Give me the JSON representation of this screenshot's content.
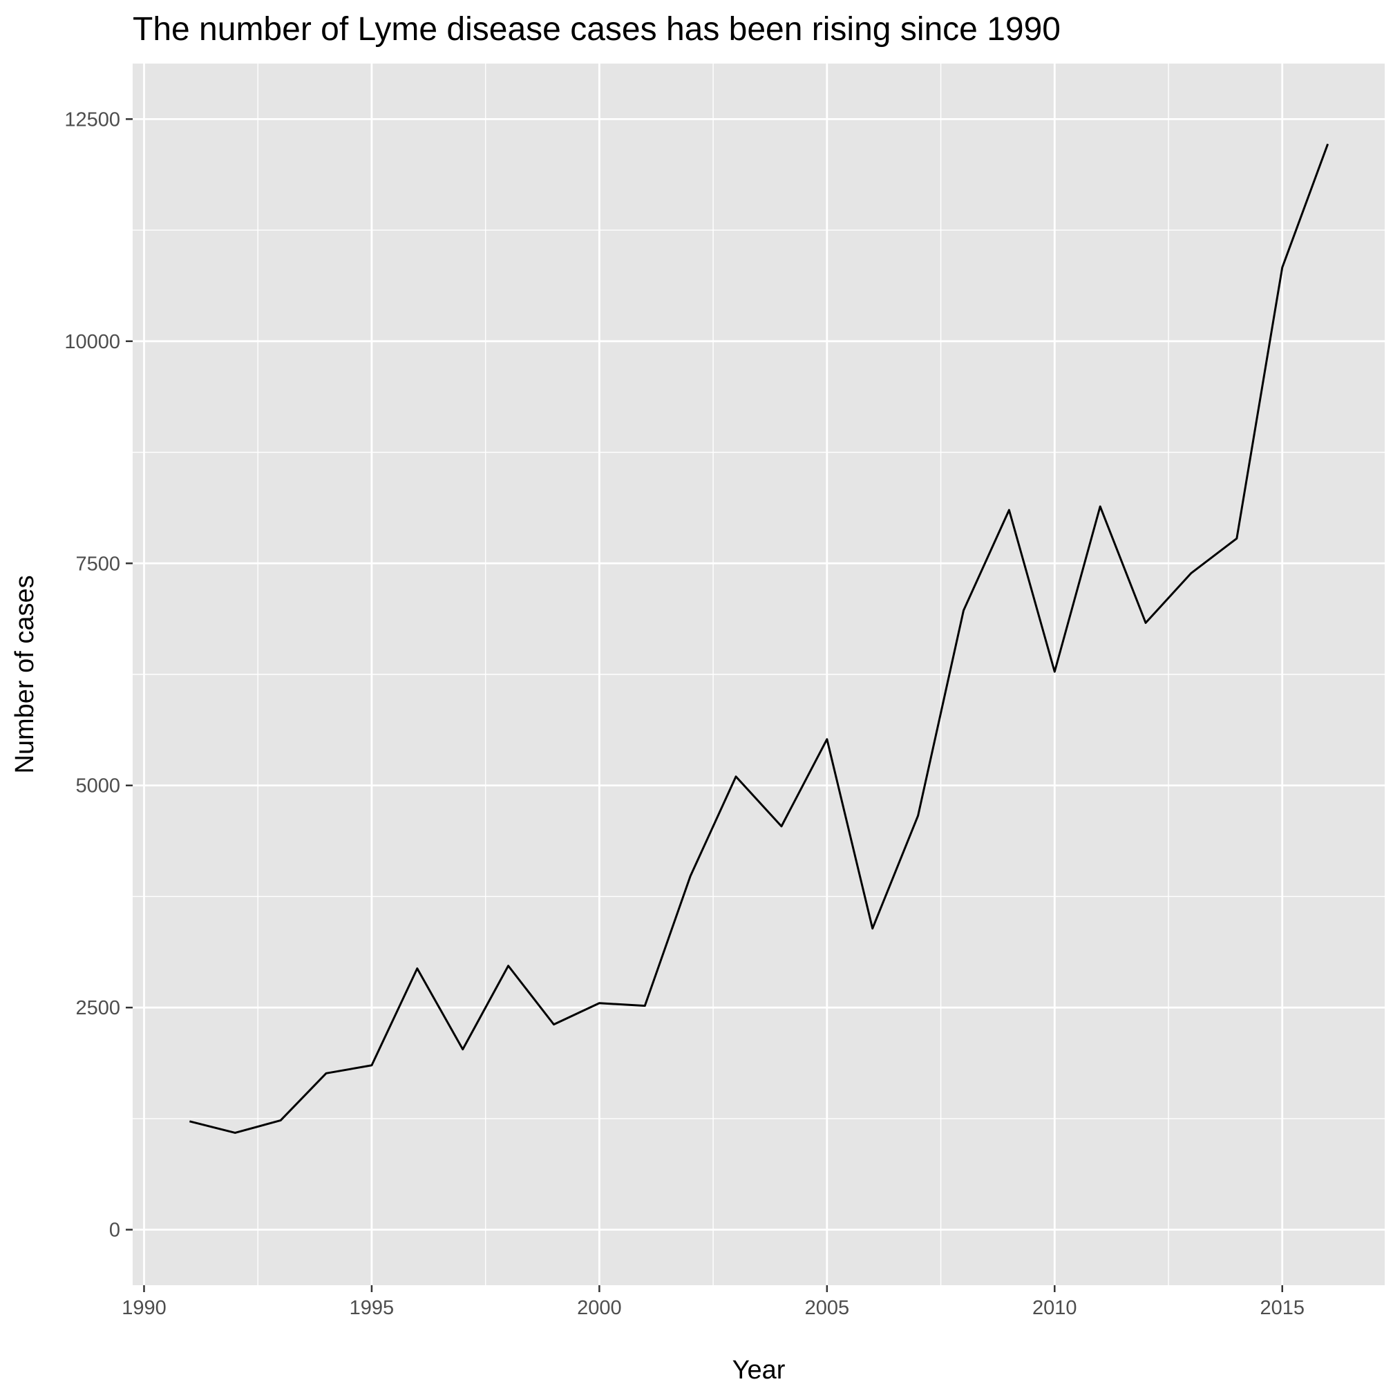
{
  "chart_data": {
    "type": "line",
    "title": "The number of Lyme disease cases has been rising since 1990",
    "xlabel": "Year",
    "ylabel": "Number of cases",
    "xlim": [
      1989.75,
      2017.25
    ],
    "ylim": [
      -625,
      13125
    ],
    "x_ticks": [
      1990,
      1995,
      2000,
      2005,
      2010,
      2015
    ],
    "x_tick_labels": [
      "1990",
      "1995",
      "2000",
      "2005",
      "2010",
      "2015"
    ],
    "x_minor_ticks": [
      1992.5,
      1997.5,
      2002.5,
      2007.5,
      2012.5
    ],
    "y_ticks": [
      0,
      2500,
      5000,
      7500,
      10000,
      12500
    ],
    "y_tick_labels": [
      "0",
      "2500",
      "5000",
      "7500",
      "10000",
      "12500"
    ],
    "y_minor_ticks": [
      1250,
      3750,
      6250,
      8750,
      11250
    ],
    "grid": true,
    "background": "#e5e5e5",
    "grid_color": "#ffffff",
    "tick_color": "#333333",
    "line_color": "#000000",
    "series": [
      {
        "x": [
          1991,
          1992,
          1993,
          1994,
          1995,
          1996,
          1997,
          1998,
          1999,
          2000,
          2001,
          2002,
          2003,
          2004,
          2005,
          2006,
          2007,
          2008,
          2009,
          2010,
          2011,
          2012,
          2013,
          2014,
          2015,
          2016
        ],
        "values": [
          1220,
          1090,
          1230,
          1760,
          1850,
          2940,
          2030,
          2970,
          2310,
          2550,
          2520,
          3980,
          5100,
          4540,
          5520,
          3390,
          4660,
          6970,
          8100,
          6280,
          8140,
          6830,
          7390,
          7780,
          10830,
          12220
        ]
      }
    ]
  }
}
